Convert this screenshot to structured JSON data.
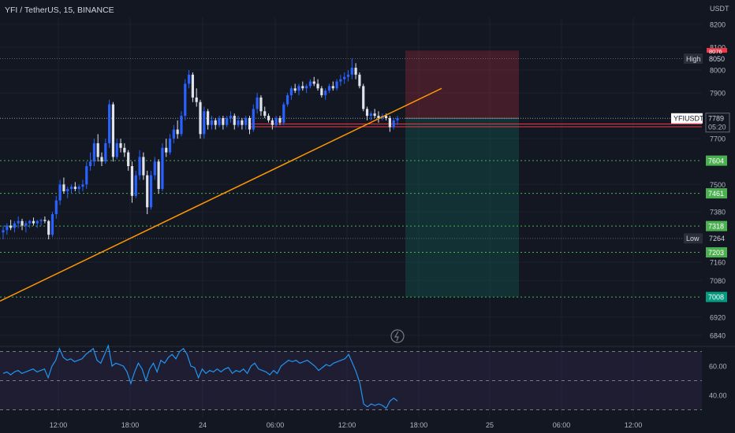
{
  "header": {
    "title": "YFI / TetherUS, 15, BINANCE"
  },
  "colors": {
    "background": "#131722",
    "grid": "#1c2030",
    "up": "#2962ff",
    "down": "#e0e3eb",
    "trendline": "#ff9800",
    "support": "#4caf50",
    "resistance": "#f23645",
    "rsi": "#2196f3",
    "rsi_band": "#7e57c2",
    "axis_text": "#b2b5be"
  },
  "chart_data": {
    "type": "candlestick",
    "symbol": "YFIUSDT",
    "quote_currency": "USDT",
    "x_tick_labels": [
      "12:00",
      "18:00",
      "24",
      "06:00",
      "12:00",
      "18:00",
      "25",
      "06:00",
      "12:00"
    ],
    "y_tick_labels": [
      "8200",
      "8100",
      "8000",
      "7900",
      "7700",
      "7500",
      "7380",
      "7160",
      "7080",
      "6920",
      "6840"
    ],
    "ylim": [
      6800,
      8230
    ],
    "high": {
      "label": "High",
      "value": "8050"
    },
    "low": {
      "label": "Low",
      "value": "7264"
    },
    "last_price": {
      "label": "YFIUSDT",
      "value": "7789",
      "countdown": "05:20"
    },
    "partial_label": "8076",
    "support_levels": [
      "7604",
      "7461",
      "7318",
      "7203",
      "7008"
    ],
    "resistance_levels": [
      7764,
      7752
    ],
    "position": {
      "entry": 7789,
      "stop": 8085,
      "target": 7008
    },
    "trendline": {
      "start": 6990,
      "end": 7920
    },
    "candles": [
      [
        7290,
        7320,
        7260,
        7300
      ],
      [
        7300,
        7330,
        7280,
        7320
      ],
      [
        7320,
        7345,
        7300,
        7310
      ],
      [
        7310,
        7340,
        7290,
        7330
      ],
      [
        7330,
        7360,
        7310,
        7340
      ],
      [
        7340,
        7350,
        7300,
        7320
      ],
      [
        7320,
        7340,
        7290,
        7330
      ],
      [
        7330,
        7345,
        7310,
        7340
      ],
      [
        7340,
        7355,
        7320,
        7330
      ],
      [
        7330,
        7345,
        7310,
        7340
      ],
      [
        7340,
        7350,
        7320,
        7345
      ],
      [
        7345,
        7360,
        7330,
        7340
      ],
      [
        7340,
        7345,
        7260,
        7280
      ],
      [
        7280,
        7380,
        7270,
        7370
      ],
      [
        7370,
        7450,
        7350,
        7430
      ],
      [
        7430,
        7520,
        7410,
        7500
      ],
      [
        7500,
        7530,
        7460,
        7470
      ],
      [
        7470,
        7490,
        7440,
        7480
      ],
      [
        7480,
        7500,
        7460,
        7490
      ],
      [
        7490,
        7510,
        7470,
        7480
      ],
      [
        7480,
        7500,
        7460,
        7490
      ],
      [
        7490,
        7520,
        7470,
        7500
      ],
      [
        7500,
        7600,
        7480,
        7580
      ],
      [
        7580,
        7640,
        7560,
        7600
      ],
      [
        7600,
        7700,
        7580,
        7680
      ],
      [
        7680,
        7720,
        7600,
        7620
      ],
      [
        7620,
        7640,
        7580,
        7600
      ],
      [
        7600,
        7700,
        7590,
        7680
      ],
      [
        7680,
        7870,
        7660,
        7850
      ],
      [
        7850,
        7860,
        7600,
        7620
      ],
      [
        7620,
        7700,
        7610,
        7680
      ],
      [
        7680,
        7700,
        7640,
        7660
      ],
      [
        7660,
        7680,
        7620,
        7640
      ],
      [
        7640,
        7650,
        7560,
        7580
      ],
      [
        7580,
        7600,
        7420,
        7450
      ],
      [
        7450,
        7560,
        7440,
        7540
      ],
      [
        7540,
        7650,
        7520,
        7620
      ],
      [
        7620,
        7640,
        7520,
        7540
      ],
      [
        7540,
        7560,
        7370,
        7400
      ],
      [
        7400,
        7560,
        7390,
        7540
      ],
      [
        7540,
        7620,
        7520,
        7600
      ],
      [
        7600,
        7610,
        7460,
        7480
      ],
      [
        7480,
        7680,
        7470,
        7660
      ],
      [
        7660,
        7700,
        7620,
        7640
      ],
      [
        7640,
        7720,
        7630,
        7700
      ],
      [
        7700,
        7760,
        7680,
        7740
      ],
      [
        7740,
        7780,
        7700,
        7720
      ],
      [
        7720,
        7820,
        7710,
        7800
      ],
      [
        7800,
        7960,
        7780,
        7940
      ],
      [
        7940,
        8000,
        7920,
        7980
      ],
      [
        7980,
        7990,
        7860,
        7880
      ],
      [
        7880,
        7920,
        7840,
        7860
      ],
      [
        7860,
        7870,
        7700,
        7720
      ],
      [
        7720,
        7840,
        7700,
        7820
      ],
      [
        7820,
        7830,
        7740,
        7760
      ],
      [
        7760,
        7800,
        7740,
        7780
      ],
      [
        7780,
        7790,
        7740,
        7760
      ],
      [
        7760,
        7800,
        7750,
        7790
      ],
      [
        7790,
        7800,
        7740,
        7760
      ],
      [
        7760,
        7800,
        7750,
        7790
      ],
      [
        7790,
        7820,
        7770,
        7800
      ],
      [
        7800,
        7810,
        7740,
        7760
      ],
      [
        7760,
        7800,
        7750,
        7780
      ],
      [
        7780,
        7790,
        7740,
        7760
      ],
      [
        7760,
        7800,
        7740,
        7790
      ],
      [
        7790,
        7800,
        7720,
        7740
      ],
      [
        7740,
        7850,
        7730,
        7830
      ],
      [
        7830,
        7900,
        7810,
        7880
      ],
      [
        7880,
        7890,
        7800,
        7820
      ],
      [
        7820,
        7840,
        7790,
        7800
      ],
      [
        7800,
        7810,
        7770,
        7780
      ],
      [
        7780,
        7790,
        7740,
        7760
      ],
      [
        7760,
        7800,
        7750,
        7790
      ],
      [
        7790,
        7800,
        7760,
        7770
      ],
      [
        7770,
        7860,
        7760,
        7850
      ],
      [
        7850,
        7900,
        7840,
        7890
      ],
      [
        7890,
        7930,
        7870,
        7920
      ],
      [
        7920,
        7940,
        7900,
        7910
      ],
      [
        7910,
        7940,
        7890,
        7930
      ],
      [
        7930,
        7950,
        7910,
        7920
      ],
      [
        7920,
        7940,
        7900,
        7930
      ],
      [
        7930,
        7960,
        7920,
        7950
      ],
      [
        7950,
        7970,
        7930,
        7940
      ],
      [
        7940,
        7960,
        7910,
        7920
      ],
      [
        7920,
        7930,
        7880,
        7890
      ],
      [
        7890,
        7920,
        7870,
        7910
      ],
      [
        7910,
        7940,
        7900,
        7930
      ],
      [
        7930,
        7950,
        7910,
        7920
      ],
      [
        7920,
        7960,
        7910,
        7950
      ],
      [
        7950,
        7980,
        7930,
        7960
      ],
      [
        7960,
        7990,
        7940,
        7970
      ],
      [
        7970,
        8000,
        7950,
        7980
      ],
      [
        7980,
        8050,
        7960,
        8010
      ],
      [
        8010,
        8030,
        7960,
        7980
      ],
      [
        7980,
        7990,
        7920,
        7930
      ],
      [
        7930,
        7940,
        7820,
        7830
      ],
      [
        7830,
        7840,
        7780,
        7800
      ],
      [
        7800,
        7820,
        7780,
        7810
      ],
      [
        7810,
        7830,
        7790,
        7800
      ],
      [
        7800,
        7820,
        7770,
        7790
      ],
      [
        7790,
        7810,
        7780,
        7800
      ],
      [
        7800,
        7810,
        7780,
        7790
      ],
      [
        7790,
        7800,
        7730,
        7750
      ],
      [
        7750,
        7790,
        7740,
        7780
      ],
      [
        7780,
        7800,
        7760,
        7790
      ]
    ],
    "rsi": {
      "tick_labels": [
        "60.00",
        "40.00"
      ],
      "levels": [
        70,
        50,
        30
      ],
      "ylim": [
        24,
        76
      ],
      "values": [
        55,
        56,
        54,
        56,
        57,
        55,
        56,
        57,
        58,
        56,
        57,
        58,
        52,
        60,
        64,
        72,
        66,
        64,
        65,
        63,
        64,
        65,
        68,
        70,
        72,
        64,
        62,
        68,
        74,
        60,
        62,
        61,
        60,
        56,
        48,
        56,
        62,
        58,
        50,
        58,
        62,
        56,
        64,
        62,
        66,
        68,
        65,
        70,
        72,
        68,
        60,
        59,
        52,
        58,
        55,
        57,
        56,
        58,
        56,
        58,
        59,
        55,
        57,
        56,
        58,
        55,
        60,
        62,
        58,
        57,
        56,
        54,
        57,
        55,
        60,
        62,
        64,
        63,
        64,
        62,
        63,
        64,
        62,
        60,
        57,
        59,
        61,
        60,
        62,
        63,
        64,
        65,
        68,
        62,
        56,
        48,
        34,
        32,
        34,
        33,
        34,
        33,
        31,
        36,
        38,
        36
      ]
    }
  }
}
